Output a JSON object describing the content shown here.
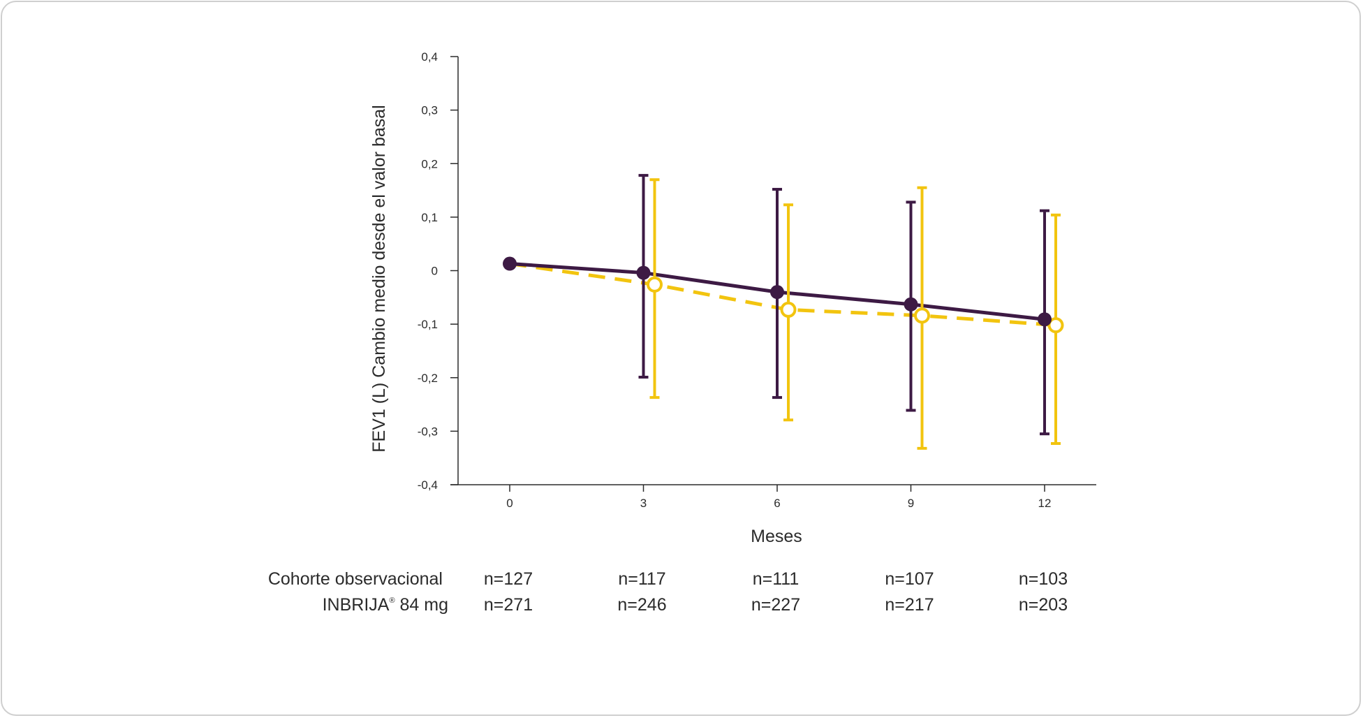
{
  "chart_data": {
    "type": "line",
    "xlabel": "Meses",
    "ylabel": "FEV1 (L) Cambio medio desde el valor basal",
    "x": [
      0,
      3,
      6,
      9,
      12
    ],
    "x_tick_labels": [
      "0",
      "3",
      "6",
      "9",
      "12"
    ],
    "ylim": [
      -0.4,
      0.4
    ],
    "y_ticks": [
      0.4,
      0.3,
      0.2,
      0.1,
      0,
      -0.1,
      -0.2,
      -0.3,
      -0.4
    ],
    "y_tick_labels": [
      "0,4",
      "0,3",
      "0,2",
      "0,1",
      "0",
      "-0,1",
      "-0,2",
      "-0,3",
      "-0,4"
    ],
    "grid": false,
    "series": [
      {
        "key": "observational",
        "color": "#3d1a44",
        "line_style": "solid",
        "marker": "filled-circle",
        "values": [
          0.013,
          -0.004,
          -0.04,
          -0.063,
          -0.091
        ],
        "error_upper": [
          null,
          0.178,
          0.152,
          0.128,
          0.112
        ],
        "error_lower": [
          null,
          -0.199,
          -0.237,
          -0.261,
          -0.305
        ]
      },
      {
        "key": "inbrija",
        "color": "#f2c40f",
        "line_style": "dashed",
        "marker": "open-circle",
        "values": [
          0.013,
          -0.026,
          -0.073,
          -0.084,
          -0.102
        ],
        "error_upper": [
          null,
          0.17,
          0.123,
          0.155,
          0.104
        ],
        "error_lower": [
          null,
          -0.237,
          -0.279,
          -0.332,
          -0.323
        ]
      }
    ]
  },
  "table": {
    "rows": [
      {
        "label": "Cohorte observacional",
        "values": [
          "n=127",
          "n=117",
          "n=111",
          "n=107",
          "n=103"
        ]
      },
      {
        "label": "INBRIJA",
        "label_sup": "®",
        "label_suffix": " 84 mg",
        "values": [
          "n=271",
          "n=246",
          "n=227",
          "n=217",
          "n=203"
        ]
      }
    ]
  }
}
